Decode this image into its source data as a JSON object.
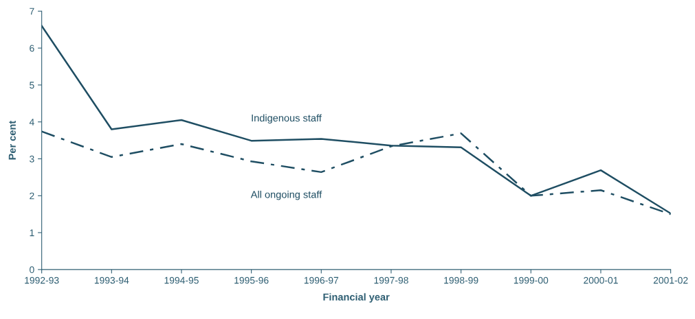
{
  "chart_data": {
    "type": "line",
    "xlabel": "Financial year",
    "ylabel": "Per cent",
    "categories": [
      "1992-93",
      "1993-94",
      "1994-95",
      "1995-96",
      "1996-97",
      "1997-98",
      "1998-99",
      "1999-00",
      "2000-01",
      "2001-02"
    ],
    "series": [
      {
        "name": "Indigenous staff",
        "color": "#1f4e63",
        "line_style": "solid",
        "values": [
          6.6,
          3.8,
          4.05,
          3.49,
          3.54,
          3.36,
          3.31,
          2.0,
          2.69,
          1.52
        ]
      },
      {
        "name": "All ongoing staff",
        "color": "#1f4e63",
        "line_style": "dashdot",
        "values": [
          3.74,
          3.05,
          3.4,
          2.93,
          2.64,
          3.34,
          3.69,
          2.0,
          2.15,
          1.5
        ]
      }
    ],
    "ylim": [
      0,
      7
    ],
    "yticks": [
      0,
      1,
      2,
      3,
      4,
      5,
      6,
      7
    ],
    "grid": false,
    "legend": false,
    "marker": "none"
  }
}
